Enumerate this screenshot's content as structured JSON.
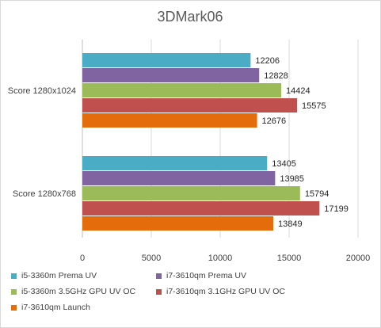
{
  "chart_data": {
    "type": "bar",
    "orientation": "horizontal",
    "title": "3DMark06",
    "categories": [
      "Score 1280x1024",
      "Score 1280x768"
    ],
    "xlim": [
      0,
      20000
    ],
    "xticks": [
      "0",
      "5000",
      "10000",
      "15000",
      "20000"
    ],
    "grid": true,
    "legend_position": "bottom",
    "series": [
      {
        "name": "i5-3360m Prema UV",
        "color": "#4bacc6",
        "values": [
          12206,
          13405
        ]
      },
      {
        "name": "i7-3610qm Prema UV",
        "color": "#8064a2",
        "values": [
          12828,
          13985
        ]
      },
      {
        "name": "i5-3360m 3.5GHz GPU UV OC",
        "color": "#9bbb59",
        "values": [
          14424,
          15794
        ]
      },
      {
        "name": "i7-3610qm 3.1GHz GPU UV OC",
        "color": "#c0504d",
        "values": [
          15575,
          17199
        ]
      },
      {
        "name": "i7-3610qm Launch",
        "color": "#e46c0a",
        "values": [
          12676,
          13849
        ]
      }
    ]
  }
}
